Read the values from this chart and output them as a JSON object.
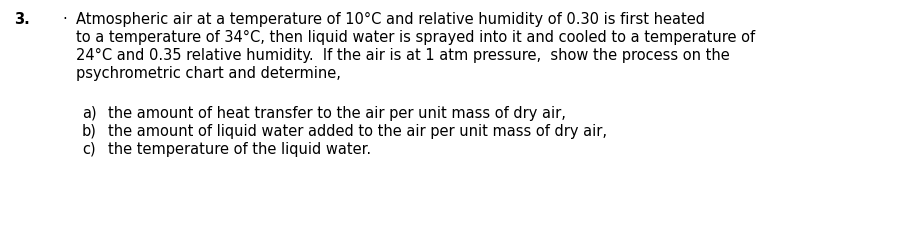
{
  "problem_number": "3.",
  "bullet": "·",
  "line1": "Atmospheric air at a temperature of 10°C and relative humidity of 0.30 is first heated",
  "line2": "to a temperature of 34°C, then liquid water is sprayed into it and cooled to a temperature of",
  "line3": "24°C and 0.35 relative humidity.  If the air is at 1 atm pressure,  show the process on the",
  "line4": "psychrometric chart and determine,",
  "items": [
    "the amount of heat transfer to the air per unit mass of dry air,",
    "the amount of liquid water added to the air per unit mass of dry air,",
    "the temperature of the liquid water."
  ],
  "item_labels": [
    "a)",
    "b)",
    "c)"
  ],
  "bg_color": "#ffffff",
  "text_color": "#000000",
  "font_size": 10.5,
  "figwidth": 9.09,
  "figheight": 2.32,
  "dpi": 100
}
